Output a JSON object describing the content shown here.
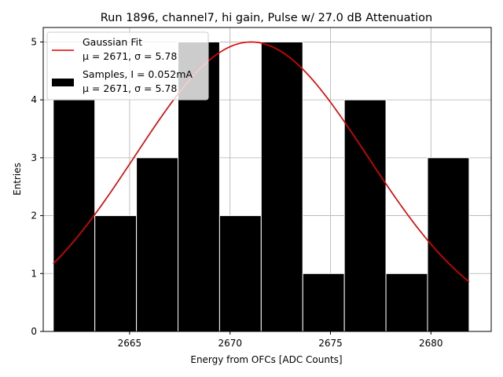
{
  "chart_data": {
    "type": "bar",
    "title": "Run 1896, channel7, hi gain, Pulse w/ 27.0 dB Attenuation",
    "xlabel": "Energy from OFCs [ADC Counts]",
    "ylabel": "Entries",
    "xlim": [
      2660.7,
      2683.0
    ],
    "ylim": [
      0,
      5.25
    ],
    "xticks": [
      2665,
      2670,
      2675,
      2680
    ],
    "yticks": [
      0,
      1,
      2,
      3,
      4,
      5
    ],
    "grid": true,
    "legend_position": "top-left",
    "histogram": {
      "name": "Samples, I = 0.052mA",
      "stats": "μ = 2671, σ = 5.78",
      "color": "#000000",
      "bin_edges": [
        2661.2,
        2663.27,
        2665.34,
        2667.41,
        2669.48,
        2671.55,
        2673.62,
        2675.69,
        2677.76,
        2679.83,
        2681.9
      ],
      "counts": [
        4,
        2,
        3,
        5,
        2,
        5,
        1,
        4,
        1,
        3
      ]
    },
    "fit": {
      "name": "Gaussian Fit",
      "stats": "μ = 2671, σ = 5.78",
      "color": "#e00000",
      "amplitude": 5.0,
      "mu": 2671.05,
      "sigma": 5.78,
      "x_range": [
        2661.2,
        2681.9
      ]
    }
  }
}
